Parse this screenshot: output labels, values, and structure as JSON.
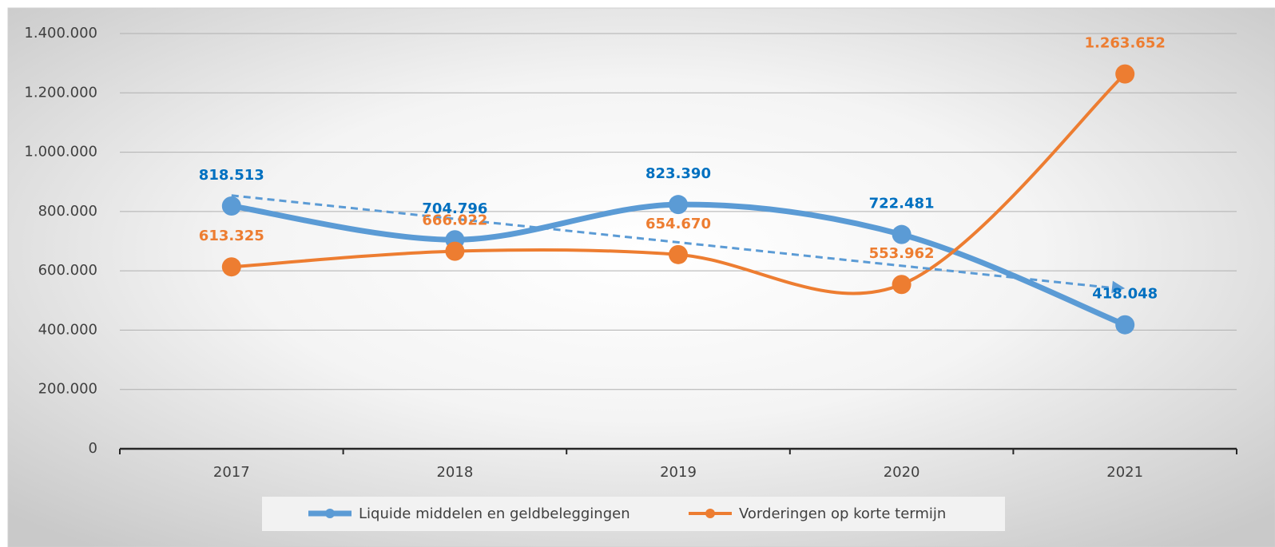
{
  "chart_data": {
    "type": "line",
    "categories": [
      "2017",
      "2018",
      "2019",
      "2020",
      "2021"
    ],
    "series": [
      {
        "name": "Liquide middelen en geldbeleggingen",
        "color": "#5b9bd5",
        "label_color": "#0070c0",
        "values": [
          818513,
          704796,
          823390,
          722481,
          418048
        ],
        "value_labels": [
          "818.513",
          "704.796",
          "823.390",
          "722.481",
          "418.048"
        ],
        "trendline": "linear"
      },
      {
        "name": "Vorderingen op korte termijn",
        "color": "#ed7d31",
        "label_color": "#ed7d31",
        "values": [
          613325,
          666022,
          654670,
          553962,
          1263652
        ],
        "value_labels": [
          "613.325",
          "666.022",
          "654.670",
          "553.962",
          "1.263.652"
        ]
      }
    ],
    "ylim": [
      0,
      1400000
    ],
    "yticks": [
      0,
      {
        "value": 200000,
        "label": "200.000"
      },
      {
        "value": 400000,
        "label": "400.000"
      },
      {
        "value": 600000,
        "label": "600.000"
      },
      {
        "value": 800000,
        "label": "800.000"
      },
      {
        "value": 1000000,
        "label": "1.000.000"
      },
      {
        "value": 1200000,
        "label": "1.200.000"
      },
      {
        "value": 1400000,
        "label": "1.400.000"
      }
    ],
    "grid": true,
    "smooth": true,
    "legend": "bottom"
  }
}
